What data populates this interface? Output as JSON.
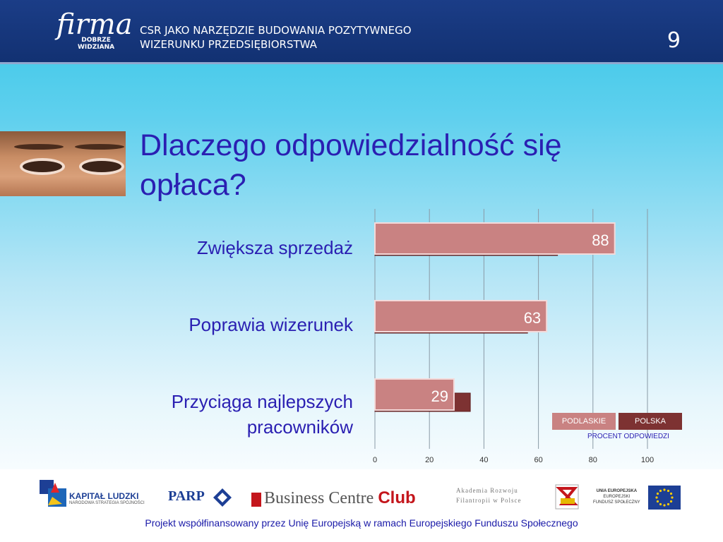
{
  "header": {
    "logo_main": "firma",
    "logo_sub1": "DOBRZE",
    "logo_sub2": "WIDZIANA",
    "title_line1": "CSR JAKO NARZĘDZIE  BUDOWANIA POZYTYWNEGO",
    "title_line2": "WIZERUNKU PRZEDSIĘBIORSTWA",
    "page_number": "9"
  },
  "slide": {
    "title_line1": "Dlaczego odpowiedzialność się",
    "title_line2": "opłaca?"
  },
  "legend": {
    "podlaskie": "PODLASKIE",
    "polska": "POLSKA",
    "note": "PROCENT ODPOWIEDZI"
  },
  "colors": {
    "podlaskie": "#c98282",
    "polska": "#7d3232",
    "title": "#2a1fb2",
    "header": "#1b3d87"
  },
  "chart_data": {
    "type": "bar",
    "orientation": "horizontal",
    "categories": [
      "Zwiększa sprzedaż",
      "Poprawia wizerunek",
      "Przyciąga najlepszych pracowników"
    ],
    "category_lines": [
      [
        "Zwiększa sprzedaż"
      ],
      [
        "Poprawia wizerunek"
      ],
      [
        "Przyciąga najlepszych",
        "pracowników"
      ]
    ],
    "series": [
      {
        "name": "PODLASKIE",
        "values": [
          88,
          63,
          29
        ]
      },
      {
        "name": "POLSKA",
        "values": [
          67,
          56,
          35
        ]
      }
    ],
    "data_labels": [
      "88",
      "63",
      "29"
    ],
    "xlim": [
      0,
      100
    ],
    "xticks": [
      "0",
      "20",
      "40",
      "60",
      "80",
      "100"
    ],
    "xlabel": "PROCENT ODPOWIEDZI",
    "grid": true,
    "legend": "bottom-right"
  },
  "footer": {
    "logo1_line1": "KAPITAŁ LUDZKI",
    "logo1_line2": "NARODOWA STRATEGIA SPÓJNOŚCI",
    "logo2": "PARP",
    "logo3_a": "Business Centre",
    "logo3_b": "Club",
    "logo4_line1": "Akademia Rozwoju",
    "logo4_line2": "Filantropii w Polsce",
    "logo6_line1": "UNIA EUROPEJSKA",
    "logo6_line2": "EUROPEJSKI",
    "logo6_line3": "FUNDUSZ SPOŁECZNY",
    "note": "Projekt współfinansowany przez Unię Europejską w ramach Europejskiego Funduszu Społecznego"
  }
}
